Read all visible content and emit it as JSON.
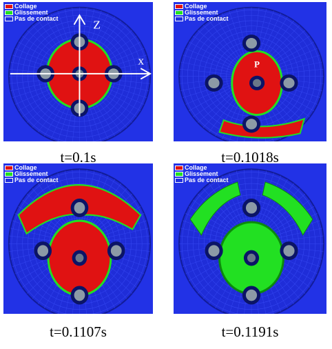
{
  "panels": [
    {
      "legend": [
        "Collage",
        "Glissement",
        "Pas de contact"
      ],
      "caption": "t=0.1s",
      "annotations": [
        "Z",
        "x"
      ]
    },
    {
      "legend": [
        "Collage",
        "Glissement",
        "Pas de contact"
      ],
      "caption": "t=0.1018s",
      "annotations": [
        "P"
      ]
    },
    {
      "legend": [
        "Collage",
        "Glissement",
        "Pas de contact"
      ],
      "caption": "t=0.1107s",
      "annotations": []
    },
    {
      "legend": [
        "Collage",
        "Glissement",
        "Pas de contact"
      ],
      "caption": "t=0.1191s",
      "annotations": []
    }
  ]
}
